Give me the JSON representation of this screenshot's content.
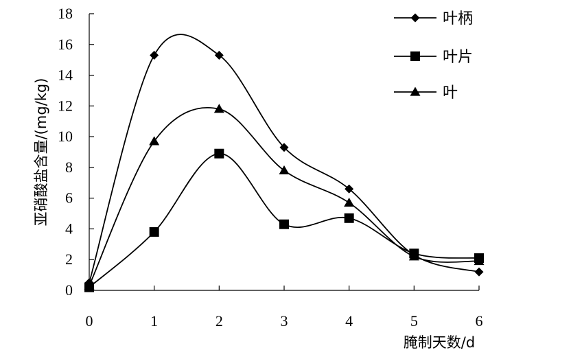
{
  "chart_data": {
    "type": "line",
    "xlabel": "腌制天数/d",
    "ylabel": "亚硝酸盐含量/(mg/kg)",
    "x": [
      0,
      1,
      2,
      3,
      4,
      5,
      6
    ],
    "xlim": [
      0,
      6
    ],
    "ylim": [
      0,
      18
    ],
    "yticks": [
      0,
      2,
      4,
      6,
      8,
      10,
      12,
      14,
      16,
      18
    ],
    "xticks": [
      0,
      1,
      2,
      3,
      4,
      5,
      6
    ],
    "grid": false,
    "smooth": true,
    "legend_position": "top-right",
    "series": [
      {
        "name": "叶柄",
        "marker": "diamond",
        "values": [
          0.5,
          15.3,
          15.3,
          9.3,
          6.6,
          2.3,
          1.2
        ]
      },
      {
        "name": "叶片",
        "marker": "square",
        "values": [
          0.2,
          3.8,
          8.9,
          4.3,
          4.7,
          2.4,
          2.1
        ]
      },
      {
        "name": "叶",
        "marker": "triangle",
        "values": [
          0.3,
          9.7,
          11.8,
          7.8,
          5.7,
          2.2,
          1.9
        ]
      }
    ]
  }
}
